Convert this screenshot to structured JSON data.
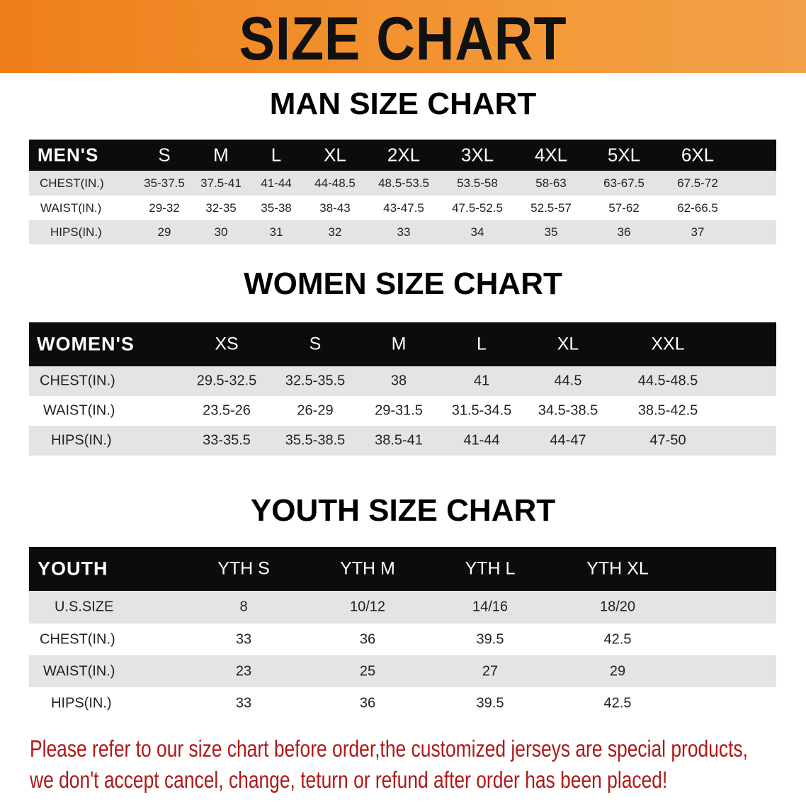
{
  "banner": {
    "title": "SIZE CHART",
    "color": "#ee7f1a"
  },
  "men": {
    "title": "MAN SIZE CHART",
    "header": [
      "MEN'S",
      "S",
      "M",
      "L",
      "XL",
      "2XL",
      "3XL",
      "4XL",
      "5XL",
      "6XL"
    ],
    "rows": [
      [
        "CHEST(IN.)",
        "35-37.5",
        "37.5-41",
        "41-44",
        "44-48.5",
        "48.5-53.5",
        "53.5-58",
        "58-63",
        "63-67.5",
        "67.5-72"
      ],
      [
        "WAIST(IN.)",
        "29-32",
        "32-35",
        "35-38",
        "38-43",
        "43-47.5",
        "47.5-52.5",
        "52.5-57",
        "57-62",
        "62-66.5"
      ],
      [
        "HIPS(IN.)",
        "29",
        "30",
        "31",
        "32",
        "33",
        "34",
        "35",
        "36",
        "37"
      ]
    ]
  },
  "women": {
    "title": "WOMEN SIZE CHART",
    "header": [
      "WOMEN'S",
      "XS",
      "S",
      "M",
      "L",
      "XL",
      "XXL"
    ],
    "rows": [
      [
        "CHEST(IN.)",
        "29.5-32.5",
        "32.5-35.5",
        "38",
        "41",
        "44.5",
        "44.5-48.5"
      ],
      [
        "WAIST(IN.)",
        "23.5-26",
        "26-29",
        "29-31.5",
        "31.5-34.5",
        "34.5-38.5",
        "38.5-42.5"
      ],
      [
        "HIPS(IN.)",
        "33-35.5",
        "35.5-38.5",
        "38.5-41",
        "41-44",
        "44-47",
        "47-50"
      ]
    ]
  },
  "youth": {
    "title": "YOUTH SIZE CHART",
    "header": [
      "YOUTH",
      "YTH S",
      "YTH M",
      "YTH L",
      "YTH XL"
    ],
    "rows": [
      [
        "U.S.SIZE",
        "8",
        "10/12",
        "14/16",
        "18/20"
      ],
      [
        "CHEST(IN.)",
        "33",
        "36",
        "39.5",
        "42.5"
      ],
      [
        "WAIST(IN.)",
        "23",
        "25",
        "27",
        "29"
      ],
      [
        "HIPS(IN.)",
        "33",
        "36",
        "39.5",
        "42.5"
      ]
    ]
  },
  "notice": {
    "line1": "Please refer to our size chart before order,the customized jerseys are special products,",
    "line2": "we don't accept cancel, change, teturn or refund after order has been placed!",
    "color": "#b01818"
  }
}
